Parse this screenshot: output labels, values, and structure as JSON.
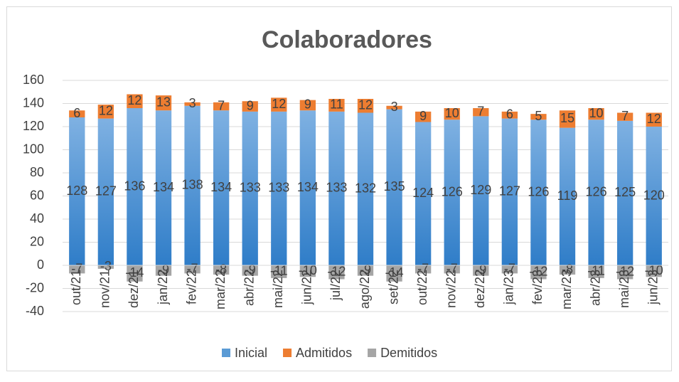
{
  "chart_data": {
    "type": "stacked_bar",
    "title": "Colaboradores",
    "categories": [
      "out/21",
      "nov/21",
      "dez/21",
      "jan/22",
      "fev/22",
      "mar/22",
      "abr/22",
      "mai/22",
      "jun/22",
      "jul/22",
      "ago/22",
      "set/22",
      "out/22",
      "nov/22",
      "dez/22",
      "jan/23",
      "fev/23",
      "mar/23",
      "abr/23",
      "mai/23",
      "jun/23"
    ],
    "series": [
      {
        "name": "Inicial",
        "color": "#5b9bd5",
        "values": [
          128,
          127,
          136,
          134,
          138,
          134,
          133,
          133,
          134,
          133,
          132,
          135,
          124,
          126,
          129,
          127,
          126,
          119,
          126,
          125,
          120
        ]
      },
      {
        "name": "Admitidos",
        "color": "#ed7d31",
        "values": [
          6,
          12,
          12,
          13,
          3,
          7,
          9,
          12,
          9,
          11,
          12,
          3,
          9,
          10,
          7,
          6,
          5,
          15,
          10,
          7,
          12
        ]
      },
      {
        "name": "Demitidos",
        "color": "#a5a5a5",
        "values": [
          -7,
          -3,
          -14,
          -9,
          -7,
          -8,
          -9,
          -11,
          -10,
          -12,
          -9,
          -14,
          -7,
          -7,
          -9,
          -7,
          -12,
          -8,
          -11,
          -12,
          -10
        ]
      }
    ],
    "ylim": [
      -40,
      160
    ],
    "yticks": [
      -40,
      -20,
      0,
      20,
      40,
      60,
      80,
      100,
      120,
      140,
      160
    ],
    "grid": true,
    "legend": "bottom"
  }
}
